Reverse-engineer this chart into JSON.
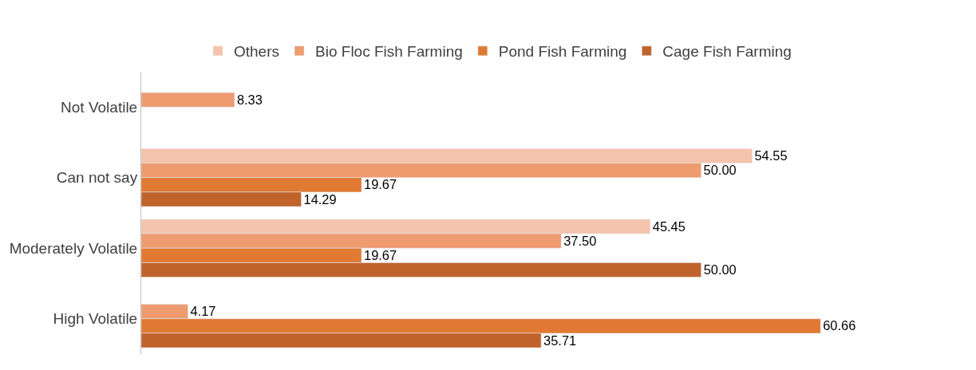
{
  "chart_data": {
    "type": "bar",
    "orientation": "horizontal",
    "categories": [
      "Not Volatile",
      "Can not say",
      "Moderately Volatile",
      "High Volatile"
    ],
    "series": [
      {
        "name": "Others",
        "color": "#f5c3ab",
        "values": [
          null,
          54.55,
          45.45,
          null
        ],
        "value_labels": [
          null,
          "54.55",
          "45.45",
          null
        ]
      },
      {
        "name": "Bio Floc Fish Farming",
        "color": "#ee9b70",
        "values": [
          8.33,
          50.0,
          37.5,
          4.17
        ],
        "value_labels": [
          "8.33",
          "50.00",
          "37.50",
          "4.17"
        ]
      },
      {
        "name": "Pond Fish Farming",
        "color": "#e07a33",
        "values": [
          null,
          19.67,
          19.67,
          60.66
        ],
        "value_labels": [
          null,
          "19.67",
          "19.67",
          "60.66"
        ]
      },
      {
        "name": "Cage Fish Farming",
        "color": "#c0632b",
        "values": [
          null,
          14.29,
          50.0,
          35.71
        ],
        "value_labels": [
          null,
          "14.29",
          "50.00",
          "35.71"
        ]
      }
    ],
    "legend": "top"
  }
}
